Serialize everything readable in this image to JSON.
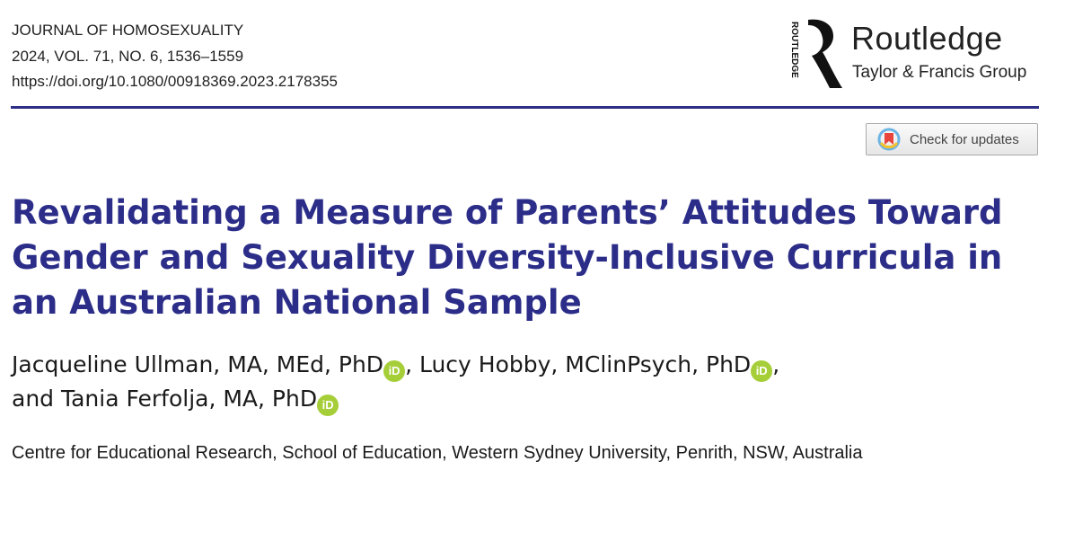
{
  "journal": {
    "name": "JOURNAL OF HOMOSEXUALITY",
    "citation": "2024, VOL. 71, NO. 6, 1536–1559",
    "doi": "https://doi.org/10.1080/00918369.2023.2178355"
  },
  "publisher": {
    "vertical_text": "ROUTLEDGE",
    "name": "Routledge",
    "group": "Taylor & Francis Group"
  },
  "check_updates": {
    "label": "Check for updates",
    "icon": "bookmark-icon"
  },
  "article": {
    "title": "Revalidating a Measure of Parents’ Attitudes Toward Gender and Sexuality Diversity-Inclusive Curricula in an Australian National Sample",
    "authors": [
      {
        "name": "Jacqueline Ullman, MA, MEd, PhD",
        "sep": ", "
      },
      {
        "name": "Lucy Hobby, MClinPsych, PhD",
        "sep": ","
      },
      {
        "name": "and Tania Ferfolja, MA, PhD",
        "sep": ""
      }
    ],
    "orcid_label": "iD",
    "affiliation": "Centre for Educational Research, School of Education, Western Sydney University, Penrith, NSW, Australia"
  },
  "colors": {
    "title": "#2b2d88",
    "rule": "#2d2f86",
    "orcid": "#a6ce39"
  }
}
